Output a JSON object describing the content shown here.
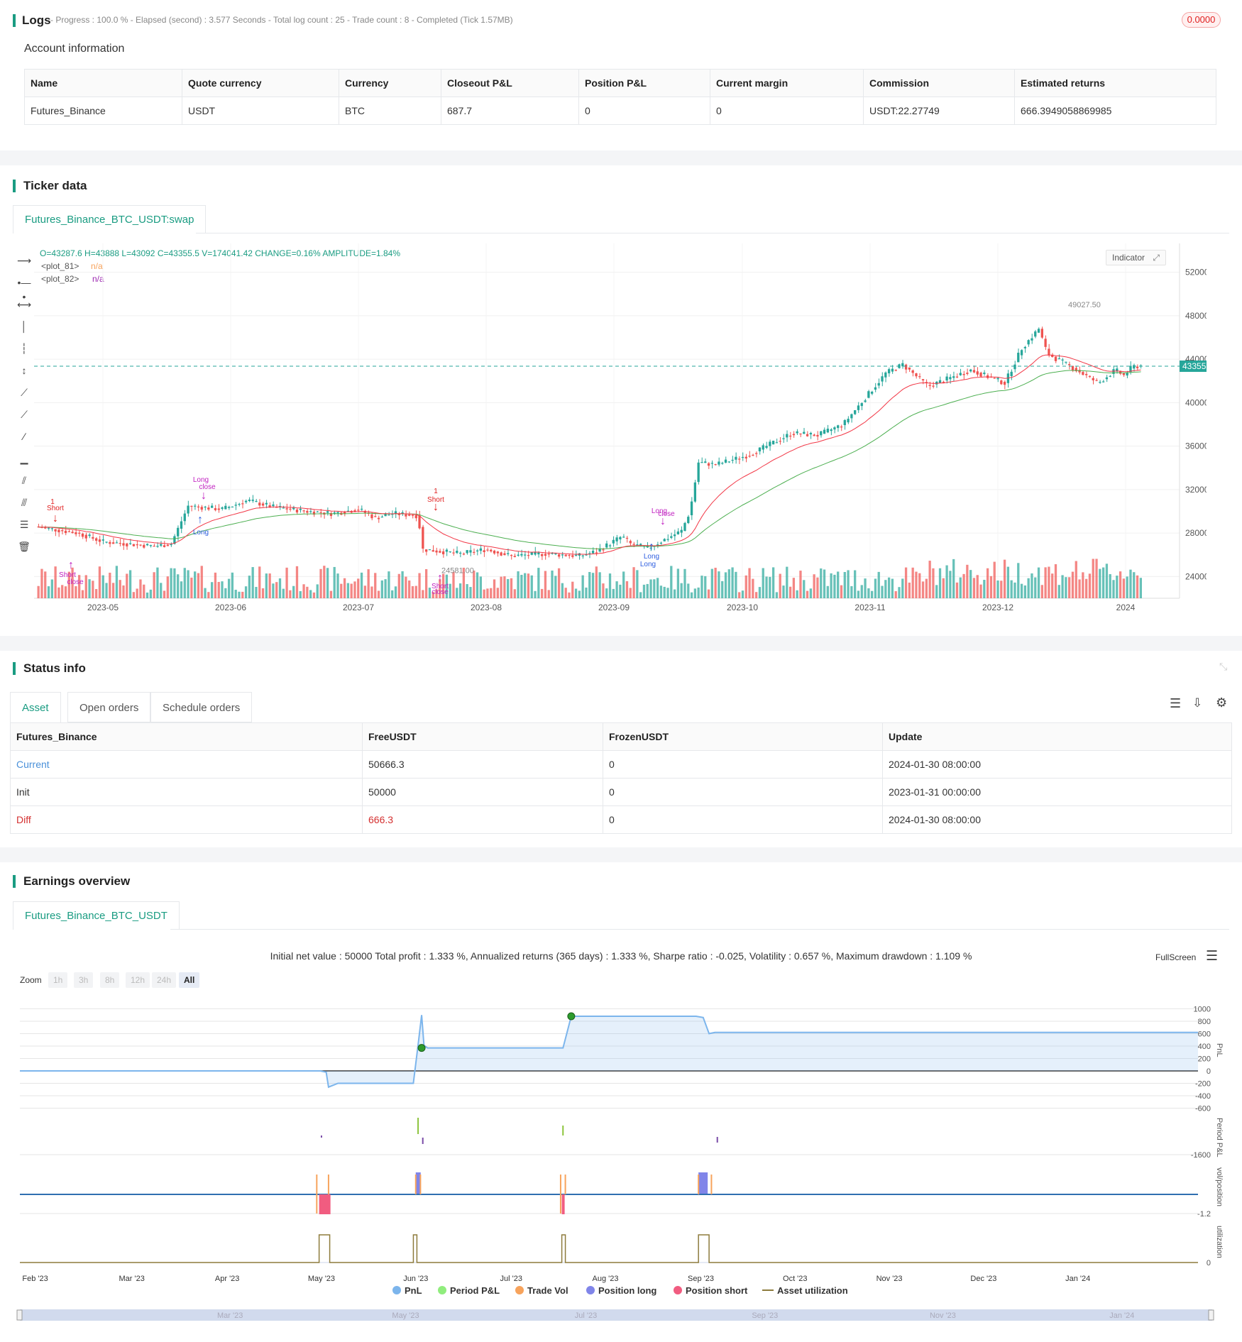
{
  "logs": {
    "title": "Logs",
    "progress": "- Progress : 100.0 % - Elapsed (second) : 3.577  Seconds - Total log count : 25 - Trade count : 8 - Completed (Tick 1.57MB)",
    "badge": "0.0000",
    "account_title": "Account information",
    "columns": [
      "Name",
      "Quote currency",
      "Currency",
      "Closeout P&L",
      "Position P&L",
      "Current margin",
      "Commission",
      "Estimated returns"
    ],
    "row": [
      "Futures_Binance",
      "USDT",
      "BTC",
      "687.7",
      "0",
      "0",
      "USDT:22.27749",
      "666.3949058869985"
    ]
  },
  "ticker": {
    "title": "Ticker data",
    "tab": "Futures_Binance_BTC_USDT:swap",
    "ohlc": "O=43287.6 H=43888 L=43092 C=43355.5 V=174041.42 CHANGE=0.16% AMPLITUDE=1.84%",
    "plot81": "<plot_81>",
    "plot82": "<plot_82>",
    "na": "n/a",
    "indicator": "Indicator",
    "price_tag": "43355.50",
    "peak_label": "49027.50",
    "low_label": "24581.00",
    "y_ticks": [
      "52000.00",
      "48000.00",
      "44000.00",
      "40000.00",
      "36000.00",
      "32000.00",
      "28000.00",
      "24000.00"
    ],
    "x_ticks": [
      "2023-05",
      "2023-06",
      "2023-07",
      "2023-08",
      "2023-09",
      "2023-10",
      "2023-11",
      "2023-12",
      "2024"
    ],
    "markers": {
      "short": "Short",
      "long": "Long",
      "close": "close",
      "one": "1"
    },
    "colors": {
      "up": "#26a69a",
      "down": "#ef5350",
      "ema_fast": "#f23645",
      "ema_slow": "#4caf50"
    }
  },
  "status": {
    "title": "Status info",
    "tabs": [
      "Asset",
      "Open orders",
      "Schedule orders"
    ],
    "columns": [
      "Futures_Binance",
      "FreeUSDT",
      "FrozenUSDT",
      "Update"
    ],
    "rows": [
      [
        "Current",
        "50666.3",
        "0",
        "2024-01-30 08:00:00"
      ],
      [
        "Init",
        "50000",
        "0",
        "2023-01-31 00:00:00"
      ],
      [
        "Diff",
        "666.3",
        "0",
        "2024-01-30 08:00:00"
      ]
    ]
  },
  "earnings": {
    "title": "Earnings overview",
    "tab": "Futures_Binance_BTC_USDT",
    "summary": "Initial net value : 50000 Total profit : 1.333 %, Annualized returns (365 days) : 1.333 %, Sharpe ratio : -0.025, Volatility : 0.657 %, Maximum drawdown : 1.109 %",
    "fullscreen": "FullScreen",
    "zoom_label": "Zoom",
    "zoom": [
      "1h",
      "3h",
      "8h",
      "12h",
      "24h",
      "All"
    ],
    "pnl_ticks": [
      "1000",
      "800",
      "600",
      "400",
      "200",
      "0",
      "-200",
      "-400",
      "-600"
    ],
    "period_tick": "-1600",
    "vol_tick": "-1.2",
    "util_tick": "0",
    "axis_titles": [
      "PnL",
      "Period P&L",
      "vol/position",
      "utilization"
    ],
    "x_ticks": [
      "Feb '23",
      "Mar '23",
      "Apr '23",
      "May '23",
      "Jun '23",
      "Jul '23",
      "Aug '23",
      "Sep '23",
      "Oct '23",
      "Nov '23",
      "Dec '23",
      "Jan '24"
    ],
    "nav_ticks": [
      "Mar '23",
      "May '23",
      "Jul '23",
      "Sep '23",
      "Nov '23",
      "Jan '24"
    ],
    "legend": [
      {
        "name": "PnL",
        "color": "#7cb5ec"
      },
      {
        "name": "Period P&L",
        "color": "#90ed7d"
      },
      {
        "name": "Trade Vol",
        "color": "#f7a35c"
      },
      {
        "name": "Position long",
        "color": "#8085e9"
      },
      {
        "name": "Position short",
        "color": "#f15c80"
      },
      {
        "name": "Asset utilization",
        "color": "#8d7b3c"
      }
    ]
  }
}
